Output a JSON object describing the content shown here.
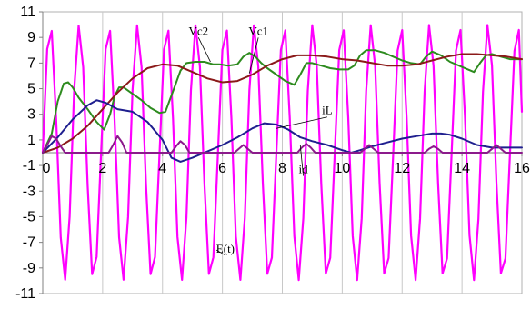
{
  "chart_data": {
    "type": "line",
    "title": "",
    "xlabel": "",
    "ylabel": "",
    "xlim": [
      0,
      16
    ],
    "ylim": [
      -11,
      11
    ],
    "x_ticks": [
      "0",
      "2",
      "4",
      "6",
      "8",
      "10",
      "12",
      "14",
      "16"
    ],
    "y_ticks": [
      "11",
      "9",
      "7",
      "5",
      "3",
      "1",
      "-1",
      "-3",
      "-5",
      "-7",
      "-9",
      "-11"
    ],
    "grid": "vertical",
    "legend": "none",
    "series": [
      {
        "name": "E(t)",
        "color": "#ff00ff",
        "x": [
          0.0,
          0.15,
          0.3,
          0.45,
          0.6,
          0.75,
          0.9,
          1.05,
          1.2,
          1.35,
          1.5,
          1.65,
          1.8,
          1.95,
          2.1,
          2.25,
          2.4,
          2.55,
          2.7,
          2.85,
          3.0,
          3.15,
          3.3,
          3.45,
          3.6,
          3.75,
          3.9,
          4.05,
          4.2,
          4.35,
          4.5,
          4.65,
          4.8,
          4.95,
          5.1,
          5.25,
          5.4,
          5.55,
          5.7,
          5.85,
          6.0,
          6.15,
          6.3,
          6.45,
          6.6,
          6.75,
          6.9,
          7.05,
          7.2,
          7.35,
          7.5,
          7.65,
          7.8,
          7.95,
          8.1,
          8.25,
          8.4,
          8.55,
          8.7,
          8.85,
          9.0,
          9.15,
          9.3,
          9.45,
          9.6,
          9.75,
          9.9,
          10.05,
          10.2,
          10.35,
          10.5,
          10.65,
          10.8,
          10.95,
          11.1,
          11.25,
          11.4,
          11.55,
          11.7,
          11.85,
          12.0,
          12.15,
          12.3,
          12.45,
          12.6,
          12.75,
          12.9,
          13.05,
          13.2,
          13.35,
          13.5,
          13.65,
          13.8,
          13.95,
          14.1,
          14.25,
          14.4,
          14.55,
          14.7,
          14.85,
          15.0,
          15.15,
          15.3,
          15.45,
          15.6,
          15.75,
          15.9,
          16.0
        ],
        "values": [
          0.0,
          8.1,
          9.51,
          2.59,
          -6.62,
          -9.92,
          -4.99,
          4.94,
          9.93,
          6.67,
          -2.55,
          -9.49,
          -8.13,
          0.01,
          8.08,
          9.52,
          2.62,
          -6.6,
          -9.92,
          -5.02,
          4.91,
          9.94,
          6.69,
          -2.51,
          -9.48,
          -8.15,
          -0.04,
          8.06,
          9.53,
          2.66,
          -6.57,
          -9.93,
          -5.04,
          4.88,
          9.95,
          6.71,
          -2.48,
          -9.47,
          -8.17,
          -0.08,
          8.04,
          9.54,
          2.69,
          -6.55,
          -9.93,
          -5.07,
          4.86,
          9.95,
          6.73,
          -2.44,
          -9.46,
          -8.19,
          -0.11,
          8.02,
          9.55,
          2.72,
          -6.52,
          -9.94,
          -5.1,
          4.83,
          9.96,
          6.75,
          -2.41,
          -9.45,
          -8.21,
          -0.15,
          8.0,
          9.56,
          2.76,
          -6.5,
          -9.94,
          -5.12,
          4.81,
          9.96,
          6.77,
          -2.38,
          -9.44,
          -8.23,
          -0.18,
          7.98,
          9.57,
          2.79,
          -6.47,
          -9.95,
          -5.15,
          4.78,
          9.97,
          6.79,
          -2.34,
          -9.43,
          -8.25,
          -0.22,
          7.96,
          9.58,
          2.82,
          -6.45,
          -9.95,
          -5.17,
          4.75,
          9.97,
          6.81,
          -2.31,
          -9.42,
          -8.27,
          -0.25,
          7.94,
          9.59,
          3.2
        ]
      },
      {
        "name": "Vc2",
        "color": "#2e8b1f",
        "x": [
          0,
          0.3,
          0.5,
          0.7,
          0.85,
          1.0,
          1.2,
          1.5,
          1.8,
          2.05,
          2.25,
          2.4,
          2.55,
          2.7,
          3.0,
          3.3,
          3.6,
          3.9,
          4.1,
          4.35,
          4.6,
          4.8,
          5.1,
          5.4,
          5.7,
          5.9,
          6.2,
          6.5,
          6.7,
          6.9,
          7.1,
          7.3,
          7.5,
          7.8,
          8.1,
          8.4,
          8.6,
          8.8,
          9.0,
          9.3,
          9.6,
          9.9,
          10.2,
          10.4,
          10.6,
          10.8,
          11.1,
          11.4,
          11.7,
          12.0,
          12.3,
          12.6,
          12.8,
          13.0,
          13.3,
          13.6,
          13.9,
          14.2,
          14.4,
          14.6,
          14.8,
          15.0,
          15.3,
          15.6,
          16.0
        ],
        "values": [
          0,
          1.5,
          4.0,
          5.4,
          5.5,
          5.1,
          4.3,
          3.4,
          2.4,
          1.8,
          3.0,
          4.4,
          5.1,
          5.1,
          4.6,
          4.1,
          3.5,
          3.1,
          3.2,
          4.8,
          6.4,
          7.0,
          7.1,
          7.1,
          6.9,
          6.9,
          6.8,
          6.9,
          7.5,
          7.8,
          7.5,
          7.0,
          6.6,
          6.1,
          5.6,
          5.3,
          6.1,
          7.0,
          7.0,
          6.8,
          6.6,
          6.5,
          6.5,
          6.8,
          7.6,
          8.0,
          8.0,
          7.8,
          7.5,
          7.2,
          7.0,
          6.9,
          7.5,
          7.9,
          7.6,
          7.1,
          6.8,
          6.5,
          6.3,
          7.0,
          7.6,
          7.7,
          7.5,
          7.3,
          7.3
        ]
      },
      {
        "name": "Vc1",
        "color": "#8b1a1a",
        "x": [
          0,
          0.5,
          1.0,
          1.5,
          2.0,
          2.5,
          3.0,
          3.5,
          4.0,
          4.5,
          5.0,
          5.5,
          6.0,
          6.5,
          7.0,
          7.5,
          8.0,
          8.5,
          9.0,
          9.5,
          10.0,
          10.5,
          11.0,
          11.5,
          12.0,
          12.5,
          13.0,
          13.5,
          14.0,
          14.5,
          15.0,
          15.5,
          16.0
        ],
        "values": [
          0,
          0.4,
          1.1,
          2.1,
          3.4,
          4.7,
          5.8,
          6.6,
          6.9,
          6.8,
          6.3,
          5.8,
          5.5,
          5.6,
          6.1,
          6.8,
          7.3,
          7.6,
          7.6,
          7.5,
          7.3,
          7.2,
          7.0,
          6.8,
          6.8,
          6.9,
          7.2,
          7.5,
          7.7,
          7.7,
          7.6,
          7.5,
          7.3
        ]
      },
      {
        "name": "iL",
        "color": "#1f1f8f",
        "x": [
          0,
          0.5,
          1.0,
          1.5,
          1.8,
          2.1,
          2.5,
          3.0,
          3.5,
          4.0,
          4.3,
          4.6,
          5.0,
          5.5,
          6.0,
          6.5,
          7.0,
          7.4,
          7.8,
          8.2,
          8.6,
          9.0,
          9.5,
          10.0,
          10.3,
          10.6,
          11.0,
          11.5,
          12.0,
          12.5,
          13.0,
          13.3,
          13.6,
          14.0,
          14.5,
          15.0,
          15.5,
          16.0
        ],
        "values": [
          0,
          1.2,
          2.6,
          3.7,
          4.1,
          3.9,
          3.4,
          3.2,
          2.4,
          1.0,
          -0.4,
          -0.7,
          -0.4,
          0.1,
          0.6,
          1.2,
          1.9,
          2.3,
          2.2,
          1.8,
          1.2,
          0.9,
          0.6,
          0.2,
          0.0,
          0.2,
          0.5,
          0.8,
          1.1,
          1.3,
          1.5,
          1.5,
          1.4,
          1.1,
          0.6,
          0.4,
          0.4,
          0.4
        ]
      },
      {
        "name": "id",
        "color": "#8b1a8b",
        "x": [
          0,
          0.15,
          0.3,
          0.45,
          0.6,
          0.75,
          0.9,
          2.2,
          2.35,
          2.5,
          2.65,
          2.8,
          4.3,
          4.45,
          4.6,
          4.75,
          4.9,
          6.4,
          6.55,
          6.7,
          6.85,
          7.0,
          8.5,
          8.65,
          8.8,
          8.95,
          9.1,
          10.6,
          10.75,
          10.9,
          11.05,
          11.2,
          12.75,
          12.9,
          13.05,
          13.2,
          13.35,
          14.85,
          15.0,
          15.15,
          15.3,
          15.45,
          16.0
        ],
        "values": [
          0,
          0.6,
          1.3,
          1.1,
          0.5,
          0.0,
          0.0,
          0.0,
          0.6,
          1.3,
          0.8,
          0.0,
          0.0,
          0.5,
          0.9,
          0.6,
          0.0,
          0.0,
          0.3,
          0.6,
          0.3,
          0.0,
          0.0,
          0.4,
          0.7,
          0.4,
          0.0,
          0.0,
          0.3,
          0.6,
          0.3,
          0.0,
          0.0,
          0.3,
          0.5,
          0.3,
          0.0,
          0.0,
          0.3,
          0.6,
          0.3,
          0.0,
          0.0
        ]
      }
    ],
    "annotations": [
      {
        "text": "Vc2",
        "x": 5.2,
        "y": 9.2,
        "target_x": 5.6,
        "target_y": 7.1
      },
      {
        "text": "Vc1",
        "x": 7.2,
        "y": 9.2,
        "target_x": 6.9,
        "target_y": 6.2
      },
      {
        "text": "iL",
        "x": 9.5,
        "y": 3.0,
        "target_x": 7.8,
        "target_y": 1.9
      },
      {
        "text": "id",
        "x": 8.7,
        "y": -1.6,
        "target_x": 8.6,
        "target_y": 0.6
      },
      {
        "text": "E(t)",
        "x": 6.1,
        "y": -7.8,
        "target_x": 5.8,
        "target_y": -7.6
      }
    ]
  }
}
